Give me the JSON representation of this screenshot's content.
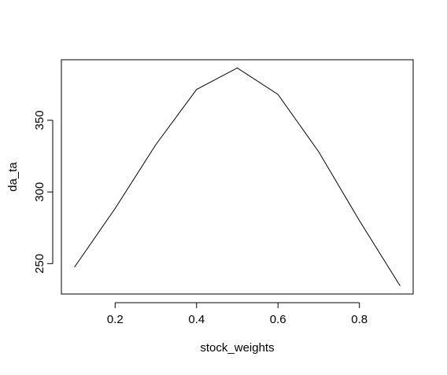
{
  "chart_data": {
    "type": "line",
    "title": "",
    "xlabel": "stock_weights",
    "ylabel": "da_ta",
    "x": [
      0.1,
      0.2,
      0.3,
      0.4,
      0.5,
      0.6,
      0.7,
      0.8,
      0.9
    ],
    "series": [
      {
        "values": [
          247.5,
          288.5,
          333,
          371.5,
          386.5,
          368,
          328,
          280,
          234.5
        ]
      }
    ],
    "xlim": [
      0.068,
      0.932
    ],
    "ylim": [
      228.8,
      392.2
    ],
    "x_ticks": [
      0.2,
      0.4,
      0.6,
      0.8
    ],
    "x_tick_labels": [
      "0.2",
      "0.4",
      "0.6",
      "0.8"
    ],
    "y_ticks": [
      250,
      300,
      350
    ],
    "y_tick_labels": [
      "250",
      "300",
      "350"
    ],
    "grid": false,
    "legend": "none",
    "line_color": "#000000"
  }
}
